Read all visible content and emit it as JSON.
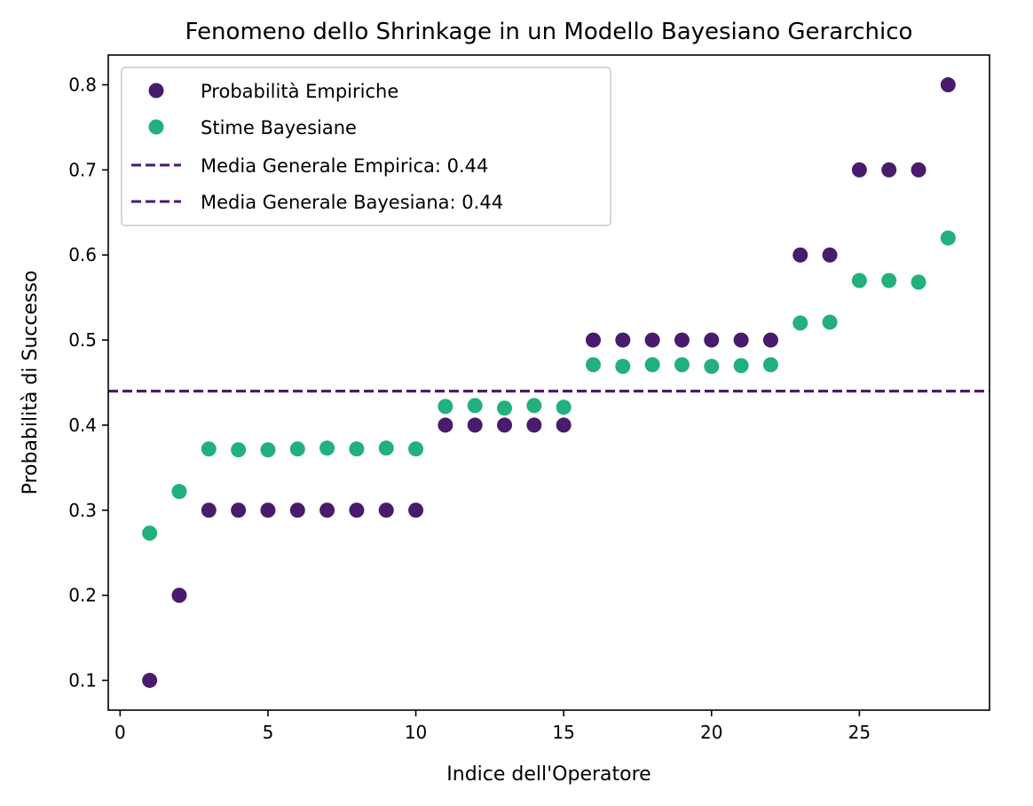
{
  "chart_data": {
    "type": "scatter",
    "title": "Fenomeno dello Shrinkage in un Modello Bayesiano Gerarchico",
    "xlabel": "Indice dell'Operatore",
    "ylabel": "Probabilità di Successo",
    "xlim": [
      -0.4,
      29.4
    ],
    "ylim": [
      0.065,
      0.835
    ],
    "xticks": [
      0,
      5,
      10,
      15,
      20,
      25
    ],
    "yticks": [
      0.1,
      0.2,
      0.3,
      0.4,
      0.5,
      0.6,
      0.7,
      0.8
    ],
    "grid": false,
    "legend_position": "top-left",
    "series": [
      {
        "name": "Probabilità Empiriche",
        "color": "#481b6d",
        "x": [
          1,
          2,
          3,
          4,
          5,
          6,
          7,
          8,
          9,
          10,
          11,
          12,
          13,
          14,
          15,
          16,
          17,
          18,
          19,
          20,
          21,
          22,
          23,
          24,
          25,
          26,
          27,
          28
        ],
        "y": [
          0.1,
          0.2,
          0.3,
          0.3,
          0.3,
          0.3,
          0.3,
          0.3,
          0.3,
          0.3,
          0.4,
          0.4,
          0.4,
          0.4,
          0.4,
          0.5,
          0.5,
          0.5,
          0.5,
          0.5,
          0.5,
          0.5,
          0.6,
          0.6,
          0.7,
          0.7,
          0.7,
          0.8
        ]
      },
      {
        "name": "Stime Bayesiane",
        "color": "#22b07d",
        "x": [
          1,
          2,
          3,
          4,
          5,
          6,
          7,
          8,
          9,
          10,
          11,
          12,
          13,
          14,
          15,
          16,
          17,
          18,
          19,
          20,
          21,
          22,
          23,
          24,
          25,
          26,
          27,
          28
        ],
        "y": [
          0.273,
          0.322,
          0.372,
          0.371,
          0.371,
          0.372,
          0.373,
          0.372,
          0.373,
          0.372,
          0.422,
          0.423,
          0.42,
          0.423,
          0.421,
          0.471,
          0.469,
          0.471,
          0.471,
          0.469,
          0.47,
          0.471,
          0.52,
          0.521,
          0.57,
          0.57,
          0.568,
          0.62
        ]
      }
    ],
    "hlines": [
      {
        "name": "Media Generale Empirica: 0.44",
        "value": 0.44,
        "color": "#481b6d",
        "style": "dashed"
      },
      {
        "name": "Media Generale Bayesiana: 0.44",
        "value": 0.44,
        "color": "#481b6d",
        "style": "dashed"
      }
    ]
  }
}
